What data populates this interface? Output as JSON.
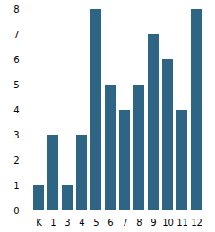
{
  "chart_data": {
    "type": "bar",
    "categories": [
      "K",
      "1",
      "3",
      "4",
      "5",
      "6",
      "7",
      "8",
      "9",
      "10",
      "11",
      "12"
    ],
    "values": [
      1,
      3,
      1,
      3,
      8,
      5,
      4,
      5,
      7,
      6,
      4,
      8
    ],
    "color": "#2e6484",
    "ylim": [
      0,
      8
    ],
    "yticks": [
      0,
      1,
      2,
      3,
      4,
      5,
      6,
      7,
      8
    ],
    "grid": false
  }
}
